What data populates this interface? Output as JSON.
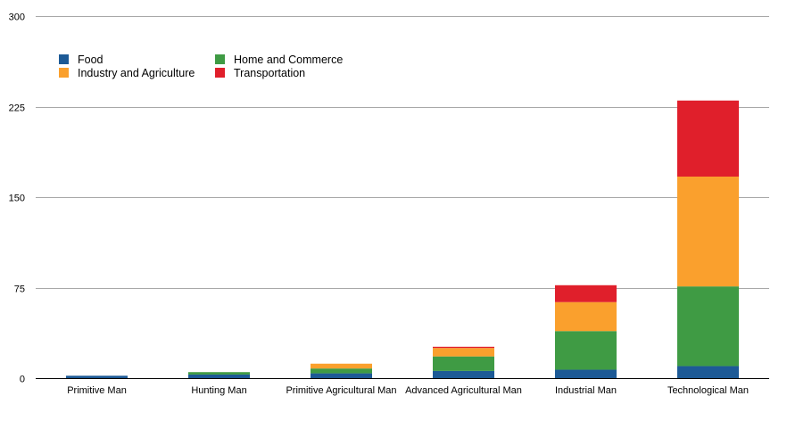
{
  "chart_data": {
    "type": "bar",
    "stacked": true,
    "title": "",
    "xlabel": "",
    "ylabel": "",
    "ylim": [
      0,
      300
    ],
    "yticks": [
      0,
      75,
      150,
      225,
      300
    ],
    "grid": true,
    "legend_position": "top-left",
    "categories": [
      "Primitive Man",
      "Hunting Man",
      "Primitive Agricultural Man",
      "Advanced Agricultural Man",
      "Industrial Man",
      "Technological Man"
    ],
    "series": [
      {
        "name": "Food",
        "color": "#1d5a96",
        "values": [
          2,
          3,
          4,
          6,
          7,
          10
        ]
      },
      {
        "name": "Home and Commerce",
        "color": "#3f9b44",
        "values": [
          0,
          2,
          4,
          12,
          32,
          66
        ]
      },
      {
        "name": "Industry and Agriculture",
        "color": "#faa02d",
        "values": [
          0,
          0,
          4,
          7,
          24,
          91
        ]
      },
      {
        "name": "Transportation",
        "color": "#e01f2b",
        "values": [
          0,
          0,
          0,
          1,
          14,
          63
        ]
      }
    ]
  }
}
